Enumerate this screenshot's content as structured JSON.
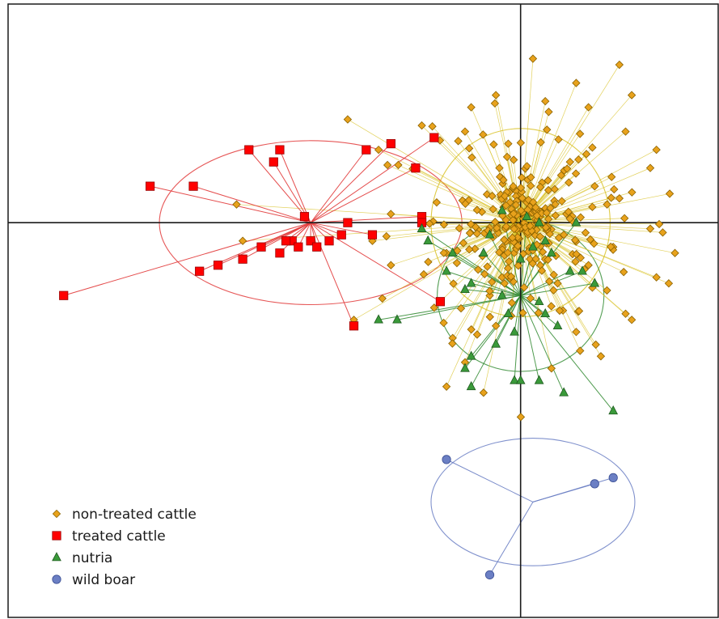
{
  "chart_data": {
    "type": "scatter",
    "title": "",
    "xlabel": "",
    "ylabel": "",
    "xlim": [
      -8.3,
      3.2
    ],
    "ylim": [
      -6.5,
      3.6
    ],
    "grid": false,
    "axes_through_origin": true,
    "legend_position": "bottom-left",
    "spider_lines": true,
    "dispersion_ellipses": true,
    "series": [
      {
        "name": "non-treated cattle",
        "marker": "diamond",
        "color": "#e8a21c",
        "edge_color": "#8a6200",
        "centroid": [
          0.0,
          0.0
        ],
        "ellipse": {
          "rx": 1.45,
          "ry": 1.55
        },
        "scatter_count": 330,
        "x": [
          0.2,
          1.6,
          1.8,
          0.4,
          -0.8,
          -2.8,
          0.9,
          -0.4,
          1.1,
          1.7,
          2.2,
          2.1,
          1.4,
          -1.6,
          -1.7,
          -2.3,
          -4.6,
          -2.4,
          -2.1,
          -1.2,
          -0.3,
          1.1,
          1.5,
          2.1,
          2.5,
          2.4,
          1.7,
          0.9,
          -0.4,
          -1.1,
          -2.7,
          -4.5,
          -1.4,
          -0.9,
          0.5,
          1.3,
          1.8,
          2.2,
          1.6,
          0.6,
          -0.5,
          -1.2,
          -0.6,
          -0.9,
          -0.2,
          0.8,
          1.2,
          0.1,
          0.7
        ],
        "y": [
          2.7,
          2.6,
          2.1,
          2.0,
          1.9,
          1.7,
          2.3,
          2.1,
          1.9,
          1.5,
          1.2,
          0.9,
          0.3,
          1.6,
          0.9,
          1.2,
          0.3,
          -0.3,
          -0.7,
          -0.5,
          -0.9,
          -0.7,
          -0.4,
          -0.1,
          -0.5,
          -1.0,
          -1.5,
          -1.8,
          -1.7,
          -1.9,
          -1.6,
          -0.3,
          -1.4,
          -2.3,
          -2.4,
          -2.2,
          -1.6,
          -0.9,
          0.4,
          -1.0,
          -1.2,
          -2.7,
          -2.8,
          1.5,
          1.3,
          1.0,
          0.6,
          0.2,
          -0.2
        ]
      },
      {
        "name": "treated cattle",
        "marker": "square",
        "color": "#ff0000",
        "edge_color": "#990000",
        "centroid": [
          -3.4,
          0.0
        ],
        "ellipse": {
          "rx": 2.45,
          "ry": 1.35
        },
        "x": [
          -4.4,
          -3.9,
          -4.0,
          -6.0,
          -5.3,
          -2.1,
          -1.4,
          -2.5,
          -1.7,
          -1.6,
          -3.5,
          -2.8,
          -2.4,
          -1.6,
          -3.7,
          -3.8,
          -3.1,
          -3.4,
          -3.3,
          -3.6,
          -2.9,
          -4.2,
          -3.9,
          -4.5,
          -4.9,
          -5.2,
          -7.4,
          -1.3,
          -2.7
        ],
        "y": [
          1.2,
          1.2,
          1.0,
          0.6,
          0.6,
          1.3,
          1.4,
          1.2,
          0.9,
          0.1,
          0.1,
          0.0,
          -0.2,
          0.0,
          -0.3,
          -0.3,
          -0.3,
          -0.3,
          -0.4,
          -0.4,
          -0.2,
          -0.4,
          -0.5,
          -0.6,
          -0.7,
          -0.8,
          -1.2,
          -1.3,
          -1.7
        ]
      },
      {
        "name": "nutria",
        "marker": "triangle",
        "color": "#3a9a3a",
        "edge_color": "#1f5a1f",
        "centroid": [
          0.0,
          -1.2
        ],
        "ellipse": {
          "rx": 1.35,
          "ry": 1.25
        },
        "x": [
          -0.3,
          0.1,
          0.3,
          0.9,
          -1.6,
          -1.5,
          -1.1,
          -1.2,
          -0.5,
          -0.6,
          -0.8,
          -0.9,
          0.0,
          0.2,
          0.4,
          0.5,
          0.8,
          1.0,
          1.2,
          0.3,
          0.4,
          0.6,
          -0.3,
          -0.2,
          -0.1,
          -0.4,
          -0.8,
          -0.9,
          -0.8,
          -0.1,
          0.0,
          0.3,
          0.7,
          1.5,
          -2.3,
          -2.0
        ],
        "y": [
          0.2,
          0.1,
          0.0,
          0.0,
          -0.1,
          -0.3,
          -0.5,
          -0.8,
          -0.2,
          -0.5,
          -1.0,
          -1.1,
          -0.6,
          -0.4,
          -0.3,
          -0.5,
          -0.8,
          -0.8,
          -1.0,
          -1.3,
          -1.5,
          -1.7,
          -1.2,
          -1.5,
          -1.8,
          -2.0,
          -2.2,
          -2.4,
          -2.7,
          -2.6,
          -2.6,
          -2.6,
          -2.8,
          -3.1,
          -1.6,
          -1.6
        ]
      },
      {
        "name": "wild boar",
        "marker": "circle",
        "color": "#6b7fc4",
        "edge_color": "#3b4f94",
        "centroid": [
          0.2,
          -4.6
        ],
        "ellipse": {
          "rx": 1.65,
          "ry": 1.05
        },
        "x": [
          -1.2,
          1.2,
          1.5,
          -0.5
        ],
        "y": [
          -3.9,
          -4.3,
          -4.2,
          -5.8
        ]
      }
    ]
  },
  "legend": [
    {
      "label": "non-treated cattle",
      "marker": "diamond",
      "color": "#e8a21c"
    },
    {
      "label": "treated cattle",
      "marker": "square",
      "color": "#ff0000"
    },
    {
      "label": "nutria",
      "marker": "triangle",
      "color": "#3a9a3a"
    },
    {
      "label": "wild boar",
      "marker": "circle",
      "color": "#6b7fc4"
    }
  ]
}
